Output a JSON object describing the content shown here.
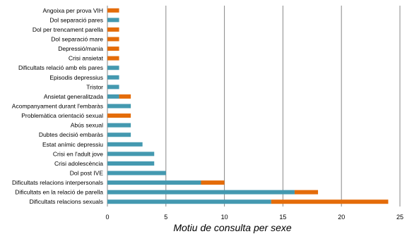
{
  "chart_data": {
    "type": "bar",
    "orientation": "horizontal",
    "stacked": true,
    "title": "",
    "xlabel": "Motiu de consulta per sexe",
    "ylabel": "",
    "xlim": [
      0,
      25
    ],
    "xticks": [
      0,
      5,
      10,
      15,
      20,
      25
    ],
    "grid": true,
    "legend": "none",
    "categories": [
      "Angoixa per prova VIH",
      "Dol separació pares",
      "Dol per trencament parella",
      "Dol separació mare",
      "Depressió/mania",
      "Crisi ansietat",
      "Dificultats relació amb els pares",
      "Episodis depressius",
      "Tristor",
      "Ansietat generalitzada",
      "Acompanyament durant l'embaràs",
      "Problemàtica orientació sexual",
      "Abús sexual",
      "Dubtes decisió embaràs",
      "Estat anímic depressiu",
      "Crisi en l'adult jove",
      "Crisi adolescència",
      "Dol post IVE",
      "Dificultats relacions interpersonals",
      "Dificultats en la relació de parella",
      "Dificultats relacions sexuals"
    ],
    "series": [
      {
        "color": "#4499b0",
        "values": [
          0,
          1,
          0,
          0,
          0,
          0,
          1,
          1,
          1,
          1,
          2,
          0,
          2,
          2,
          3,
          4,
          4,
          5,
          8,
          16,
          14
        ]
      },
      {
        "color": "#e46c0a",
        "values": [
          1,
          0,
          1,
          1,
          1,
          1,
          0,
          0,
          0,
          1,
          0,
          2,
          0,
          0,
          0,
          0,
          0,
          0,
          2,
          2,
          10
        ]
      }
    ]
  }
}
